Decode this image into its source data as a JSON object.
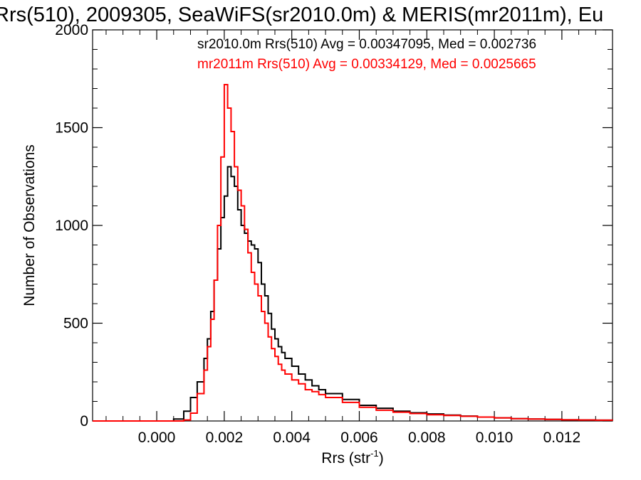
{
  "chart_data": {
    "type": "line",
    "title": "Rrs(510), 2009305, SeaWiFS(sr2010.0m) & MERIS(mr2011m), Eu",
    "xlabel": "Rrs (str",
    "xlabel_sup": "-1",
    "xlabel_close": ")",
    "ylabel": "Number of Observations",
    "xlim": [
      -0.0019,
      0.0135
    ],
    "ylim": [
      0,
      2000
    ],
    "xticks": [
      {
        "v": 0.0,
        "label": "0.000"
      },
      {
        "v": 0.002,
        "label": "0.002"
      },
      {
        "v": 0.004,
        "label": "0.004"
      },
      {
        "v": 0.006,
        "label": "0.006"
      },
      {
        "v": 0.008,
        "label": "0.008"
      },
      {
        "v": 0.01,
        "label": "0.010"
      },
      {
        "v": 0.012,
        "label": "0.012"
      }
    ],
    "yticks": [
      {
        "v": 0,
        "label": "0"
      },
      {
        "v": 500,
        "label": "500"
      },
      {
        "v": 1000,
        "label": "1000"
      },
      {
        "v": 1500,
        "label": "1500"
      },
      {
        "v": 2000,
        "label": "2000"
      }
    ],
    "grid": false,
    "series": [
      {
        "name": "sr2010.0m",
        "color": "#000000",
        "label": "sr2010.0m Rrs(510) Avg = 0.00347095, Med = 0.002736",
        "x": [
          -0.0019,
          0.0,
          0.0005,
          0.0008,
          0.001,
          0.0012,
          0.0014,
          0.0015,
          0.0016,
          0.0017,
          0.0018,
          0.0019,
          0.002,
          0.0021,
          0.0022,
          0.0023,
          0.0024,
          0.0025,
          0.0026,
          0.0027,
          0.0028,
          0.0029,
          0.003,
          0.0031,
          0.0032,
          0.0033,
          0.0034,
          0.0035,
          0.0036,
          0.0037,
          0.0038,
          0.004,
          0.0042,
          0.0044,
          0.0046,
          0.0048,
          0.005,
          0.0055,
          0.006,
          0.0065,
          0.007,
          0.0075,
          0.008,
          0.0085,
          0.009,
          0.0095,
          0.01,
          0.0105,
          0.011,
          0.0115,
          0.012,
          0.0125,
          0.013,
          0.0135
        ],
        "y": [
          0,
          0,
          10,
          50,
          120,
          200,
          320,
          420,
          560,
          720,
          880,
          1040,
          1150,
          1300,
          1250,
          1200,
          1080,
          1000,
          960,
          920,
          900,
          880,
          810,
          700,
          640,
          550,
          470,
          420,
          380,
          350,
          320,
          280,
          240,
          210,
          180,
          160,
          140,
          110,
          80,
          65,
          50,
          42,
          36,
          30,
          25,
          20,
          16,
          12,
          10,
          8,
          6,
          5,
          4,
          3
        ]
      },
      {
        "name": "mr2011m",
        "color": "#ff0000",
        "label": "mr2011m Rrs(510) Avg = 0.00334129, Med = 0.0025665",
        "x": [
          -0.0019,
          0.0,
          0.0005,
          0.0008,
          0.001,
          0.0012,
          0.0014,
          0.0015,
          0.0016,
          0.0017,
          0.0018,
          0.0019,
          0.002,
          0.0021,
          0.0022,
          0.0023,
          0.0024,
          0.0025,
          0.0026,
          0.0027,
          0.0028,
          0.0029,
          0.003,
          0.0031,
          0.0032,
          0.0033,
          0.0034,
          0.0035,
          0.0036,
          0.0037,
          0.0038,
          0.004,
          0.0042,
          0.0044,
          0.0046,
          0.0048,
          0.005,
          0.0055,
          0.006,
          0.0065,
          0.007,
          0.0075,
          0.008,
          0.0085,
          0.009,
          0.0095,
          0.01,
          0.0105,
          0.011,
          0.0115,
          0.012,
          0.0125,
          0.013,
          0.0135
        ],
        "y": [
          0,
          0,
          0,
          5,
          40,
          140,
          260,
          380,
          520,
          720,
          1000,
          1350,
          1720,
          1600,
          1480,
          1300,
          1180,
          1100,
          980,
          860,
          760,
          700,
          640,
          560,
          500,
          430,
          370,
          330,
          290,
          260,
          240,
          210,
          190,
          160,
          150,
          135,
          120,
          95,
          70,
          55,
          45,
          38,
          32,
          28,
          24,
          20,
          16,
          12,
          10,
          8,
          6,
          5,
          4,
          3
        ]
      }
    ]
  }
}
